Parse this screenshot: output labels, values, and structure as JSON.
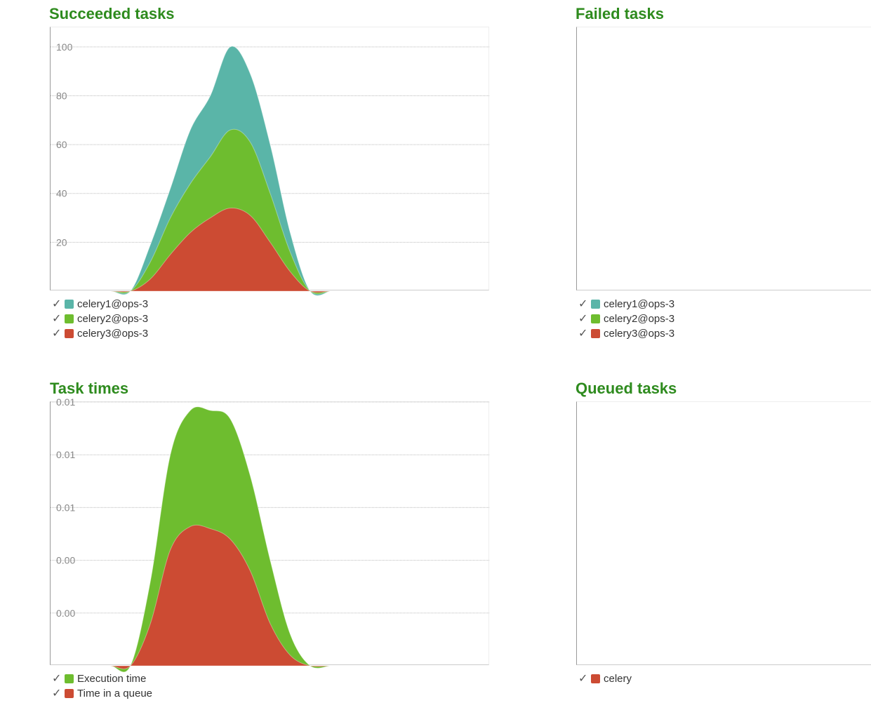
{
  "colors": {
    "title": "#2e8b1e",
    "teal": "#5ab5a8",
    "green": "#6ebd2f",
    "red": "#cc4b33"
  },
  "succeeded": {
    "title": "Succeeded tasks",
    "legend": [
      "celery1@ops-3",
      "celery2@ops-3",
      "celery3@ops-3"
    ]
  },
  "failed": {
    "title": "Failed tasks",
    "legend": [
      "celery1@ops-3",
      "celery2@ops-3",
      "celery3@ops-3"
    ]
  },
  "times": {
    "title": "Task times",
    "legend": [
      "Execution time",
      "Time in a queue"
    ]
  },
  "queued": {
    "title": "Queued tasks",
    "legend": [
      "celery"
    ]
  },
  "chart_data": [
    {
      "type": "area",
      "title": "Succeeded tasks",
      "stacked": true,
      "x": [
        0,
        1,
        2,
        3,
        4,
        5,
        6,
        7,
        8,
        9,
        10,
        11,
        12,
        13,
        14
      ],
      "ylim": [
        0,
        108
      ],
      "yticks": [
        "20",
        "40",
        "60",
        "80",
        "100"
      ],
      "ytick_values": [
        20,
        40,
        60,
        80,
        100
      ],
      "grid": true,
      "series": [
        {
          "name": "celery3@ops-3",
          "color": "#cc4b33",
          "values": [
            0,
            0,
            0,
            0,
            0,
            5,
            15,
            24,
            30,
            34,
            31,
            20,
            8,
            0,
            0
          ]
        },
        {
          "name": "celery2@ops-3",
          "color": "#6ebd2f",
          "values": [
            0,
            0,
            0,
            0,
            0,
            7,
            15,
            20,
            25,
            32,
            30,
            20,
            8,
            0,
            0
          ]
        },
        {
          "name": "celery1@ops-3",
          "color": "#5ab5a8",
          "values": [
            0,
            0,
            0,
            0,
            0,
            7,
            12,
            22,
            25,
            34,
            28,
            20,
            8,
            0,
            0
          ]
        }
      ]
    },
    {
      "type": "area",
      "title": "Failed tasks",
      "stacked": true,
      "x": [],
      "series": [
        {
          "name": "celery1@ops-3",
          "color": "#5ab5a8",
          "values": []
        },
        {
          "name": "celery2@ops-3",
          "color": "#6ebd2f",
          "values": []
        },
        {
          "name": "celery3@ops-3",
          "color": "#cc4b33",
          "values": []
        }
      ]
    },
    {
      "type": "area",
      "title": "Task times",
      "stacked": true,
      "x": [
        0,
        1,
        2,
        3,
        4,
        5,
        6,
        7,
        8,
        9,
        10,
        11,
        12,
        13,
        14
      ],
      "ylim": [
        0,
        0.0125
      ],
      "yticks": [
        "0.00",
        "0.00",
        "0.01",
        "0.01",
        "0.01"
      ],
      "ytick_values": [
        0.0025,
        0.005,
        0.0075,
        0.01,
        0.0125
      ],
      "grid": true,
      "series": [
        {
          "name": "Time in a queue",
          "color": "#cc4b33",
          "values": [
            0,
            0,
            0,
            0,
            0,
            0.002,
            0.0055,
            0.0066,
            0.0065,
            0.006,
            0.0045,
            0.002,
            0.0005,
            0,
            0
          ]
        },
        {
          "name": "Execution time",
          "color": "#6ebd2f",
          "values": [
            0,
            0,
            0,
            0,
            0,
            0.002,
            0.0045,
            0.0055,
            0.0056,
            0.0057,
            0.0045,
            0.003,
            0.001,
            0,
            0
          ]
        }
      ]
    },
    {
      "type": "area",
      "title": "Queued tasks",
      "x": [],
      "series": [
        {
          "name": "celery",
          "color": "#cc4b33",
          "values": []
        }
      ]
    }
  ]
}
